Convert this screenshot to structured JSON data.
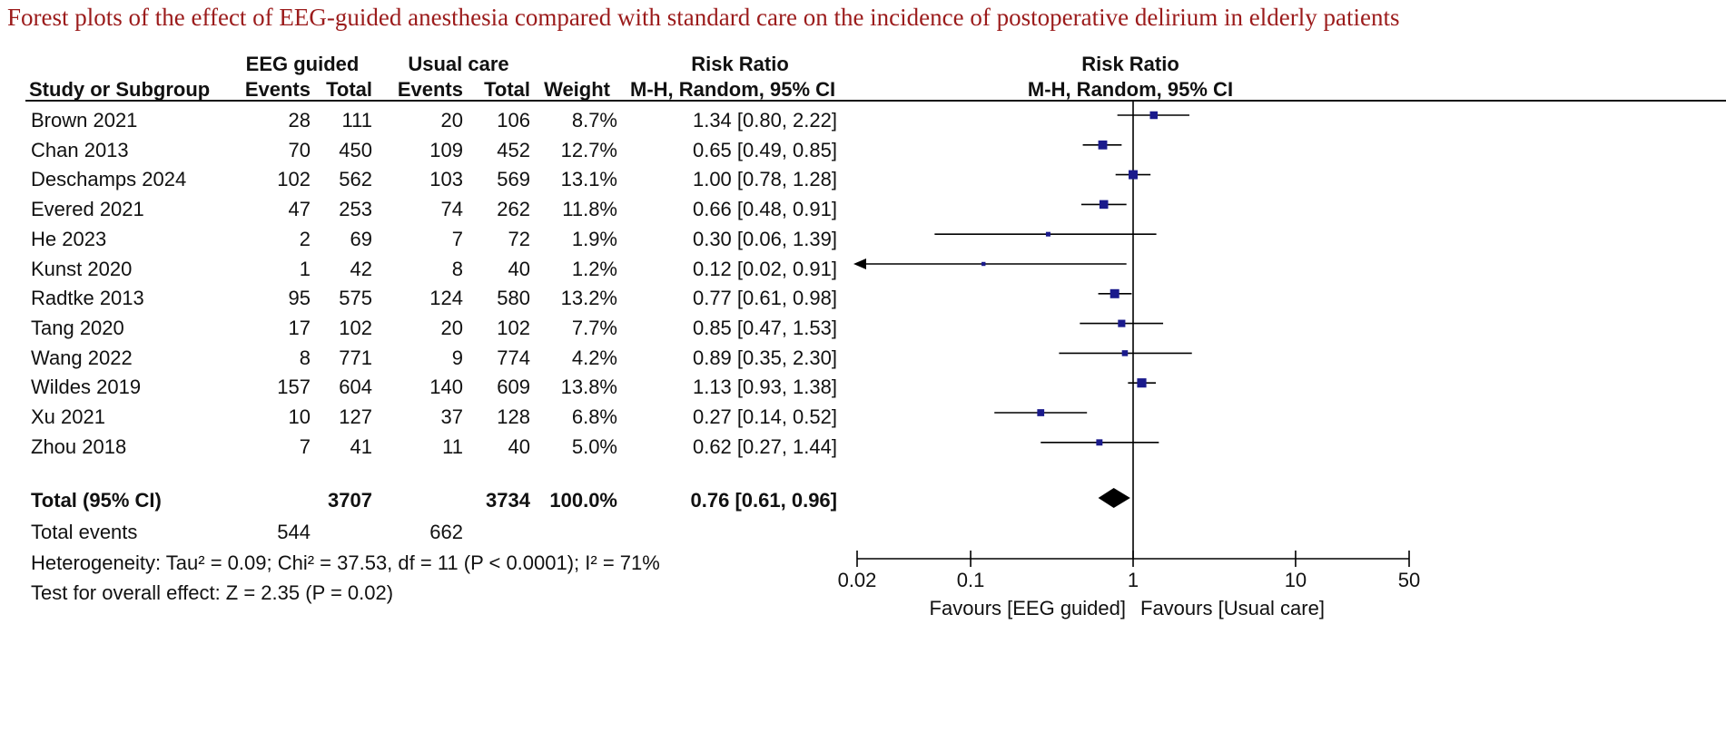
{
  "title": "Forest plots of the effect of EEG-guided anesthesia compared with standard care on the incidence of postoperative delirium in elderly patients",
  "header": {
    "group1": "EEG guided",
    "group2": "Usual care",
    "study_col": "Study or Subgroup",
    "events": "Events",
    "total": "Total",
    "weight": "Weight",
    "rr_title": "Risk Ratio",
    "rr_method": "M-H, Random, 95% CI",
    "plot_title": "Risk Ratio",
    "plot_method": "M-H, Random, 95% CI"
  },
  "studies": [
    {
      "name": "Brown 2021",
      "e1": "28",
      "n1": "111",
      "e2": "20",
      "n2": "106",
      "weight": "8.7%",
      "ci_text": "1.34 [0.80, 2.22]"
    },
    {
      "name": "Chan 2013",
      "e1": "70",
      "n1": "450",
      "e2": "109",
      "n2": "452",
      "weight": "12.7%",
      "ci_text": "0.65 [0.49, 0.85]"
    },
    {
      "name": "Deschamps 2024",
      "e1": "102",
      "n1": "562",
      "e2": "103",
      "n2": "569",
      "weight": "13.1%",
      "ci_text": "1.00 [0.78, 1.28]"
    },
    {
      "name": "Evered 2021",
      "e1": "47",
      "n1": "253",
      "e2": "74",
      "n2": "262",
      "weight": "11.8%",
      "ci_text": "0.66 [0.48, 0.91]"
    },
    {
      "name": "He 2023",
      "e1": "2",
      "n1": "69",
      "e2": "7",
      "n2": "72",
      "weight": "1.9%",
      "ci_text": "0.30 [0.06, 1.39]"
    },
    {
      "name": "Kunst 2020",
      "e1": "1",
      "n1": "42",
      "e2": "8",
      "n2": "40",
      "weight": "1.2%",
      "ci_text": "0.12 [0.02, 0.91]"
    },
    {
      "name": "Radtke 2013",
      "e1": "95",
      "n1": "575",
      "e2": "124",
      "n2": "580",
      "weight": "13.2%",
      "ci_text": "0.77 [0.61, 0.98]"
    },
    {
      "name": "Tang 2020",
      "e1": "17",
      "n1": "102",
      "e2": "20",
      "n2": "102",
      "weight": "7.7%",
      "ci_text": "0.85 [0.47, 1.53]"
    },
    {
      "name": "Wang 2022",
      "e1": "8",
      "n1": "771",
      "e2": "9",
      "n2": "774",
      "weight": "4.2%",
      "ci_text": "0.89 [0.35, 2.30]"
    },
    {
      "name": "Wildes 2019",
      "e1": "157",
      "n1": "604",
      "e2": "140",
      "n2": "609",
      "weight": "13.8%",
      "ci_text": "1.13 [0.93, 1.38]"
    },
    {
      "name": "Xu 2021",
      "e1": "10",
      "n1": "127",
      "e2": "37",
      "n2": "128",
      "weight": "6.8%",
      "ci_text": "0.27 [0.14, 0.52]"
    },
    {
      "name": "Zhou 2018",
      "e1": "7",
      "n1": "41",
      "e2": "11",
      "n2": "40",
      "weight": "5.0%",
      "ci_text": "0.62 [0.27, 1.44]"
    }
  ],
  "total": {
    "label": "Total (95% CI)",
    "n1": "3707",
    "n2": "3734",
    "weight": "100.0%",
    "ci_text": "0.76 [0.61, 0.96]"
  },
  "total_events": {
    "label": "Total events",
    "e1": "544",
    "e2": "662"
  },
  "heterogeneity": "Heterogeneity: Tau² = 0.09; Chi² = 37.53, df = 11 (P < 0.0001); I² = 71%",
  "overall_effect": "Test for overall effect: Z = 2.35 (P = 0.02)",
  "axis": {
    "favours_left": "Favours [EEG guided]",
    "favours_right": "Favours [Usual care]"
  },
  "colors": {
    "title": "#9b1b1b",
    "marker": "#1a1a8c",
    "line": "#000000"
  },
  "chart_data": {
    "type": "forest",
    "title": "Risk Ratio",
    "scale": "log",
    "xlim": [
      0.02,
      50
    ],
    "ticks": [
      0.02,
      0.1,
      1,
      10,
      50
    ],
    "tick_labels": [
      "0.02",
      "0.1",
      "1",
      "10",
      "50"
    ],
    "null_value": 1,
    "studies": [
      {
        "name": "Brown 2021",
        "rr": 1.34,
        "lo": 0.8,
        "hi": 2.22,
        "weight": 8.7
      },
      {
        "name": "Chan 2013",
        "rr": 0.65,
        "lo": 0.49,
        "hi": 0.85,
        "weight": 12.7
      },
      {
        "name": "Deschamps 2024",
        "rr": 1.0,
        "lo": 0.78,
        "hi": 1.28,
        "weight": 13.1
      },
      {
        "name": "Evered 2021",
        "rr": 0.66,
        "lo": 0.48,
        "hi": 0.91,
        "weight": 11.8
      },
      {
        "name": "He 2023",
        "rr": 0.3,
        "lo": 0.06,
        "hi": 1.39,
        "weight": 1.9
      },
      {
        "name": "Kunst 2020",
        "rr": 0.12,
        "lo": 0.02,
        "hi": 0.91,
        "weight": 1.2
      },
      {
        "name": "Radtke 2013",
        "rr": 0.77,
        "lo": 0.61,
        "hi": 0.98,
        "weight": 13.2
      },
      {
        "name": "Tang 2020",
        "rr": 0.85,
        "lo": 0.47,
        "hi": 1.53,
        "weight": 7.7
      },
      {
        "name": "Wang 2022",
        "rr": 0.89,
        "lo": 0.35,
        "hi": 2.3,
        "weight": 4.2
      },
      {
        "name": "Wildes 2019",
        "rr": 1.13,
        "lo": 0.93,
        "hi": 1.38,
        "weight": 13.8
      },
      {
        "name": "Xu 2021",
        "rr": 0.27,
        "lo": 0.14,
        "hi": 0.52,
        "weight": 6.8
      },
      {
        "name": "Zhou 2018",
        "rr": 0.62,
        "lo": 0.27,
        "hi": 1.44,
        "weight": 5.0
      }
    ],
    "pooled": {
      "rr": 0.76,
      "lo": 0.61,
      "hi": 0.96
    }
  }
}
